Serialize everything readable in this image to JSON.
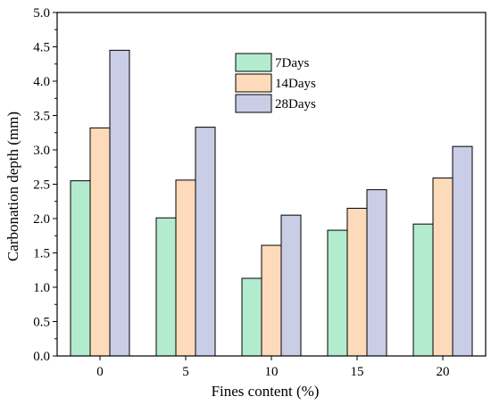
{
  "chart_data": {
    "type": "bar",
    "xlabel": "Fines content (%)",
    "ylabel": "Carbonation depth (mm)",
    "categories": [
      "0",
      "5",
      "10",
      "15",
      "20"
    ],
    "series": [
      {
        "name": "7Days",
        "values": [
          2.55,
          2.01,
          1.13,
          1.83,
          1.92
        ],
        "color": "#b3ebcf"
      },
      {
        "name": "14Days",
        "values": [
          3.32,
          2.56,
          1.61,
          2.15,
          2.59
        ],
        "color": "#fddbba"
      },
      {
        "name": "28Days",
        "values": [
          4.45,
          3.33,
          2.05,
          2.42,
          3.05
        ],
        "color": "#c9cde6"
      }
    ],
    "ylim": [
      0,
      5.0
    ],
    "yticks": [
      "0.0",
      "0.5",
      "1.0",
      "1.5",
      "2.0",
      "2.5",
      "3.0",
      "3.5",
      "4.0",
      "4.5",
      "5.0"
    ],
    "grid": false,
    "legend_position": "top-center",
    "bar_edge_color": "#000000"
  }
}
